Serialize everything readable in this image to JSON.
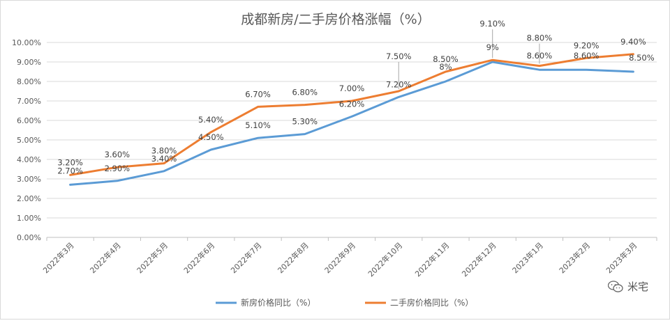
{
  "chart_data": {
    "type": "line",
    "title": "成都新房/二手房价格涨幅（%）",
    "categories": [
      "2022年3月",
      "2022年4月",
      "2022年5月",
      "2022年6月",
      "2022年7月",
      "2022年8月",
      "2022年9月",
      "2022年10月",
      "2022年11月",
      "2022年12月",
      "2023年1月",
      "2023年2月",
      "2023年3月"
    ],
    "ylim": [
      0,
      10
    ],
    "yticks": [
      "0.00%",
      "1.00%",
      "2.00%",
      "3.00%",
      "4.00%",
      "5.00%",
      "6.00%",
      "7.00%",
      "8.00%",
      "9.00%",
      "10.00%"
    ],
    "grid": true,
    "legend_position": "bottom",
    "series": [
      {
        "name": "新房价格同比（%）",
        "color": "#5b9bd5",
        "values": [
          2.7,
          2.9,
          3.4,
          4.5,
          5.1,
          5.3,
          6.2,
          7.2,
          8.0,
          9.0,
          8.6,
          8.6,
          8.5
        ],
        "labels": [
          "2.70%",
          "2.90%",
          "3.40%",
          "4.50%",
          "5.10%",
          "5.30%",
          "6.20%",
          "7.20%",
          "8%",
          "9%",
          "8.60%",
          "8.60%",
          "8.50%"
        ]
      },
      {
        "name": "二手房价格同比（%）",
        "color": "#ed7d31",
        "values": [
          3.2,
          3.6,
          3.8,
          5.4,
          6.7,
          6.8,
          7.0,
          7.5,
          8.5,
          9.1,
          8.8,
          9.2,
          9.4
        ],
        "labels": [
          "3.20%",
          "3.60%",
          "3.80%",
          "5.40%",
          "6.70%",
          "6.80%",
          "7.00%",
          "7.50%",
          "8.50%",
          "9.10%",
          "8.80%",
          "9.20%",
          "9.40%"
        ]
      }
    ]
  },
  "watermark": {
    "text": "米宅",
    "icon": "wechat-icon"
  }
}
